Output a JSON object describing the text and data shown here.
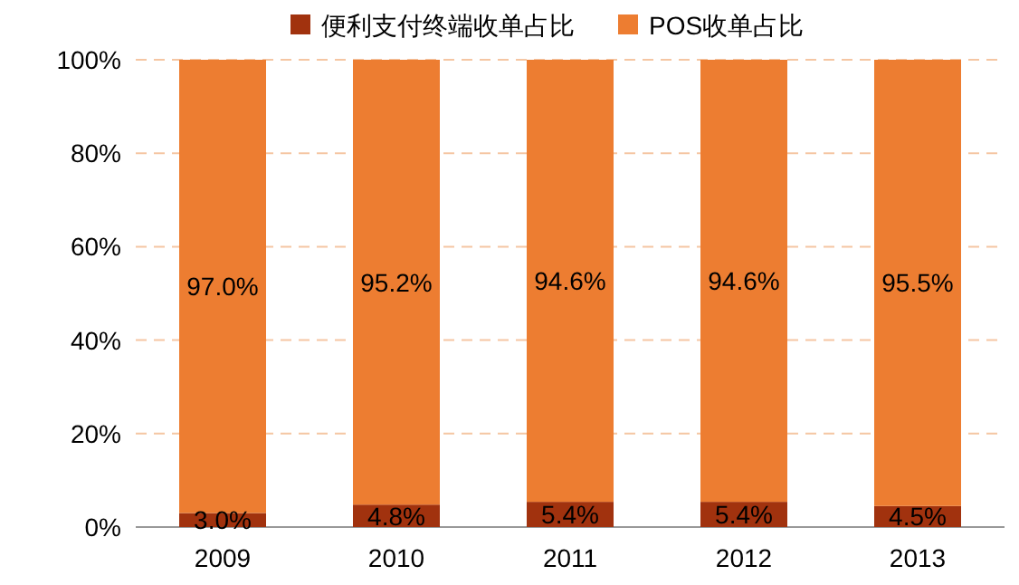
{
  "chart_data": {
    "type": "bar",
    "stacked": true,
    "categories": [
      "2009",
      "2010",
      "2011",
      "2012",
      "2013"
    ],
    "series": [
      {
        "name": "便利支付终端收单占比",
        "color": "#a1320e",
        "values": [
          3.0,
          4.8,
          5.4,
          5.4,
          4.5
        ],
        "value_labels": [
          "3.0%",
          "4.8%",
          "5.4%",
          "5.4%",
          "4.5%"
        ]
      },
      {
        "name": "POS收单占比",
        "color": "#ed7d31",
        "values": [
          97.0,
          95.2,
          94.6,
          94.6,
          95.5
        ],
        "value_labels": [
          "97.0%",
          "95.2%",
          "94.6%",
          "94.6%",
          "95.5%"
        ]
      }
    ],
    "ylim": [
      0,
      100
    ],
    "yticks": [
      {
        "value": 0,
        "label": "0%"
      },
      {
        "value": 20,
        "label": "20%"
      },
      {
        "value": 40,
        "label": "40%"
      },
      {
        "value": 60,
        "label": "60%"
      },
      {
        "value": 80,
        "label": "80%"
      },
      {
        "value": 100,
        "label": "100%"
      }
    ],
    "grid": "y",
    "legend": "top"
  }
}
